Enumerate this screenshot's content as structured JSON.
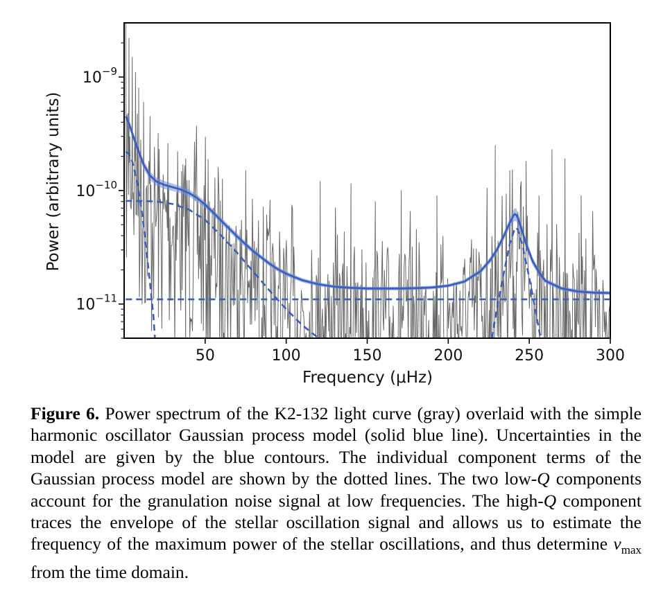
{
  "chart_data": {
    "type": "line",
    "xlabel": "Frequency (μHz)",
    "ylabel": "Power (arbitrary units)",
    "xlim": [
      0,
      300
    ],
    "ylim": [
      5e-12,
      3e-09
    ],
    "yscale": "log",
    "x_ticks": [
      50,
      100,
      150,
      200,
      250,
      300
    ],
    "x_tick_labels": [
      "50",
      "100",
      "150",
      "200",
      "250",
      "300"
    ],
    "y_ticks": [
      1e-09,
      1e-10,
      1e-11
    ],
    "y_tick_labels": [
      {
        "base": "10",
        "exp": "−9"
      },
      {
        "base": "10",
        "exp": "−10"
      },
      {
        "base": "10",
        "exp": "−11"
      }
    ],
    "grid": false,
    "legend": "none",
    "series": [
      {
        "kind": "power-spectrum",
        "color": "#555555",
        "x": [
          2,
          4,
          6,
          8,
          10,
          14,
          18,
          22,
          26,
          30,
          35,
          40,
          45,
          50,
          55,
          60,
          65,
          70,
          75,
          80,
          85,
          90,
          95,
          100,
          110,
          120,
          130,
          140,
          150,
          160,
          170,
          180,
          190,
          200,
          210,
          220,
          226,
          230,
          234,
          238,
          240,
          242,
          244,
          246,
          250,
          254,
          260,
          270,
          280,
          290,
          300
        ],
        "y": [
          4.2e-10,
          3.4e-10,
          2.7e-10,
          2.2e-10,
          1.8e-10,
          1.35e-10,
          1.15e-10,
          1.05e-10,
          1e-10,
          9.6e-11,
          9e-11,
          8.3e-11,
          7.6e-11,
          6.8e-11,
          6e-11,
          5.2e-11,
          4.5e-11,
          3.9e-11,
          3.4e-11,
          3e-11,
          2.65e-11,
          2.35e-11,
          2.1e-11,
          1.9e-11,
          1.65e-11,
          1.5e-11,
          1.42e-11,
          1.38e-11,
          1.36e-11,
          1.35e-11,
          1.35e-11,
          1.36e-11,
          1.38e-11,
          1.42e-11,
          1.55e-11,
          1.85e-11,
          2.2e-11,
          2.7e-11,
          3.5e-11,
          4.8e-11,
          5.5e-11,
          5.6e-11,
          5e-11,
          4e-11,
          2.7e-11,
          2e-11,
          1.6e-11,
          1.38e-11,
          1.3e-11,
          1.27e-11,
          1.25e-11
        ],
        "spikes": [
          {
            "x": 3,
            "y": 2.2e-09
          },
          {
            "x": 5,
            "y": 1.5e-09
          },
          {
            "x": 7,
            "y": 1.1e-09
          },
          {
            "x": 9,
            "y": 8e-10
          },
          {
            "x": 12,
            "y": 6e-10
          },
          {
            "x": 16,
            "y": 4.5e-10
          },
          {
            "x": 21,
            "y": 3.2e-10
          },
          {
            "x": 27,
            "y": 2.6e-10
          },
          {
            "x": 33,
            "y": 2.2e-10
          },
          {
            "x": 38,
            "y": 1.9e-10
          },
          {
            "x": 58,
            "y": 1.6e-10
          },
          {
            "x": 75,
            "y": 1.5e-10
          },
          {
            "x": 121,
            "y": 1.2e-10
          },
          {
            "x": 140,
            "y": 1.15e-10
          },
          {
            "x": 155,
            "y": 8e-11
          },
          {
            "x": 171,
            "y": 1e-10
          },
          {
            "x": 193,
            "y": 9e-11
          },
          {
            "x": 224,
            "y": 1.05e-10
          },
          {
            "x": 229,
            "y": 2.5e-10
          },
          {
            "x": 238,
            "y": 1.5e-10
          },
          {
            "x": 245,
            "y": 1.2e-10
          },
          {
            "x": 248,
            "y": 1.8e-10
          },
          {
            "x": 256,
            "y": 9e-11
          },
          {
            "x": 264,
            "y": 2.3e-10
          },
          {
            "x": 272,
            "y": 1.9e-10
          },
          {
            "x": 282,
            "y": 9e-11
          }
        ]
      },
      {
        "kind": "gp-model",
        "style": "solid",
        "color": "#3b5fc0",
        "band_color": "#6f8ed8",
        "x": [
          1,
          3,
          5,
          8,
          12,
          16,
          20,
          25,
          30,
          35,
          40,
          45,
          50,
          55,
          60,
          65,
          70,
          75,
          80,
          85,
          90,
          95,
          100,
          110,
          120,
          130,
          140,
          150,
          160,
          170,
          180,
          190,
          200,
          210,
          220,
          226,
          230,
          234,
          238,
          240,
          241,
          242,
          243,
          245,
          248,
          252,
          256,
          260,
          270,
          280,
          290,
          300
        ],
        "y": [
          4.5e-10,
          3.9e-10,
          3.2e-10,
          2.4e-10,
          1.7e-10,
          1.35e-10,
          1.2e-10,
          1.12e-10,
          1.07e-10,
          1.02e-10,
          9.5e-11,
          8.6e-11,
          7.5e-11,
          6.4e-11,
          5.4e-11,
          4.6e-11,
          3.9e-11,
          3.35e-11,
          2.9e-11,
          2.55e-11,
          2.25e-11,
          2.02e-11,
          1.85e-11,
          1.62e-11,
          1.49e-11,
          1.42e-11,
          1.39e-11,
          1.37e-11,
          1.37e-11,
          1.37e-11,
          1.38e-11,
          1.4e-11,
          1.45e-11,
          1.58e-11,
          1.95e-11,
          2.45e-11,
          3e-11,
          3.9e-11,
          5.2e-11,
          5.9e-11,
          6.2e-11,
          6.1e-11,
          5.7e-11,
          4.7e-11,
          3.4e-11,
          2.4e-11,
          1.9e-11,
          1.6e-11,
          1.37e-11,
          1.29e-11,
          1.26e-11,
          1.25e-11
        ],
        "y_upper": [
          4.9e-10,
          4.2e-10,
          3.45e-10,
          2.6e-10,
          1.85e-10,
          1.46e-10,
          1.3e-10,
          1.21e-10,
          1.15e-10,
          1.09e-10,
          1.02e-10,
          9.2e-11,
          8e-11,
          6.8e-11,
          5.75e-11,
          4.9e-11,
          4.15e-11,
          3.55e-11,
          3.05e-11,
          2.68e-11,
          2.36e-11,
          2.12e-11,
          1.94e-11,
          1.69e-11,
          1.55e-11,
          1.47e-11,
          1.44e-11,
          1.42e-11,
          1.42e-11,
          1.42e-11,
          1.43e-11,
          1.45e-11,
          1.5e-11,
          1.64e-11,
          2.05e-11,
          2.6e-11,
          3.2e-11,
          4.2e-11,
          5.7e-11,
          6.6e-11,
          7e-11,
          6.9e-11,
          6.4e-11,
          5.2e-11,
          3.7e-11,
          2.6e-11,
          2e-11,
          1.68e-11,
          1.43e-11,
          1.34e-11,
          1.31e-11,
          1.3e-11
        ],
        "y_lower": [
          4.1e-10,
          3.6e-10,
          2.95e-10,
          2.2e-10,
          1.55e-10,
          1.24e-10,
          1.1e-10,
          1.03e-10,
          9.9e-11,
          9.5e-11,
          8.9e-11,
          8e-11,
          7e-11,
          6e-11,
          5.05e-11,
          4.3e-11,
          3.65e-11,
          3.15e-11,
          2.75e-11,
          2.42e-11,
          2.14e-11,
          1.92e-11,
          1.76e-11,
          1.55e-11,
          1.43e-11,
          1.37e-11,
          1.34e-11,
          1.32e-11,
          1.32e-11,
          1.32e-11,
          1.33e-11,
          1.35e-11,
          1.4e-11,
          1.52e-11,
          1.85e-11,
          2.3e-11,
          2.8e-11,
          3.6e-11,
          4.7e-11,
          5.2e-11,
          5.4e-11,
          5.35e-11,
          5e-11,
          4.2e-11,
          3.1e-11,
          2.2e-11,
          1.8e-11,
          1.52e-11,
          1.31e-11,
          1.24e-11,
          1.21e-11,
          1.2e-11
        ]
      },
      {
        "kind": "component-low-q-1",
        "style": "dashed",
        "color": "#3b5fc0",
        "x": [
          1,
          3,
          5,
          8,
          10,
          12,
          14,
          16,
          18,
          19
        ],
        "y": [
          2.2e-10,
          2.1e-10,
          1.8e-10,
          1.2e-10,
          8e-11,
          5e-11,
          2.8e-11,
          1.5e-11,
          8e-12,
          5e-12
        ]
      },
      {
        "kind": "component-low-q-2",
        "style": "dashed",
        "color": "#3b5fc0",
        "x": [
          1,
          10,
          20,
          30,
          40,
          50,
          60,
          70,
          80,
          90,
          100,
          110,
          120
        ],
        "y": [
          8.1e-11,
          8.1e-11,
          8e-11,
          7.6e-11,
          6.8e-11,
          5.5e-11,
          4e-11,
          2.8e-11,
          1.9e-11,
          1.3e-11,
          9e-12,
          6.5e-12,
          5e-12
        ]
      },
      {
        "kind": "component-white-noise",
        "style": "dashed",
        "color": "#3b5fc0",
        "x": [
          1,
          300
        ],
        "y": [
          1.1e-11,
          1.1e-11
        ]
      },
      {
        "kind": "component-high-q",
        "style": "dashed",
        "color": "#3b5fc0",
        "x": [
          227,
          230,
          234,
          238,
          241,
          242,
          243,
          246,
          250,
          254,
          257
        ],
        "y": [
          5e-12,
          9e-12,
          1.8e-11,
          3.4e-11,
          4.6e-11,
          4.7e-11,
          4.5e-11,
          3.2e-11,
          1.7e-11,
          8.5e-12,
          5e-12
        ]
      }
    ]
  },
  "caption": {
    "label": "Figure 6.",
    "text_1": " Power spectrum of the K2-132 light curve (gray) overlaid with the simple harmonic oscillator Gaussian process model (solid blue line). Uncertainties in the model are given by the blue contours. The individual component terms of the Gaussian process model are shown by the dotted lines. The two low-",
    "q_symbol": "Q",
    "text_2": " components account for the granulation noise signal at low frequencies. The high-",
    "text_3": " component traces the envelope of the stellar oscillation signal and allows us to estimate the frequency of the maximum power of the stellar oscillations, and thus determine ",
    "nu_symbol": "ν",
    "nu_sub": "max",
    "text_4": " from the time domain."
  }
}
